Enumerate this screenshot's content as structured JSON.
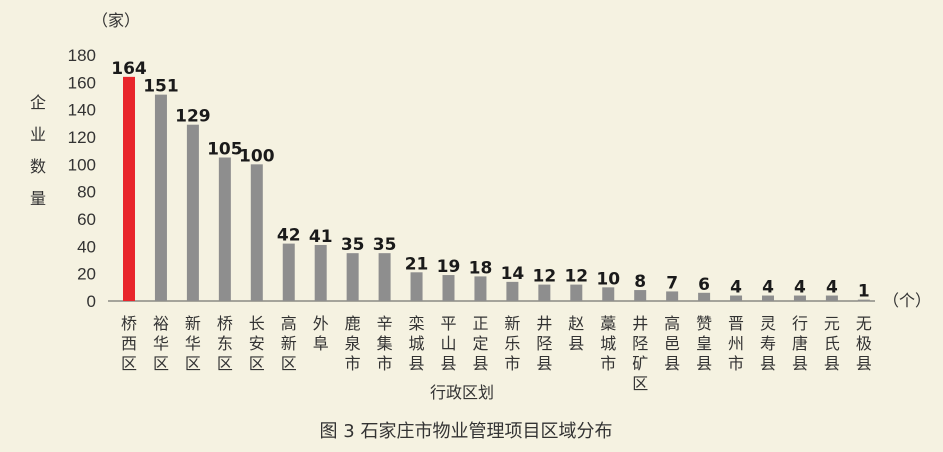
{
  "chart_data": {
    "type": "bar",
    "caption": "图 3 石家庄市物业管理项目区域分布",
    "ylabel": "企业数量",
    "yunit": "（家）",
    "xlabel": "行政区划",
    "xunit": "（个）",
    "ylim": [
      0,
      180
    ],
    "yticks": [
      0,
      20,
      40,
      60,
      80,
      100,
      120,
      140,
      160,
      180
    ],
    "categories": [
      "桥西区",
      "裕华区",
      "新华区",
      "桥东区",
      "长安区",
      "高新区",
      "外阜",
      "鹿泉市",
      "辛集市",
      "栾城县",
      "平山县",
      "正定县",
      "新乐市",
      "井陉县",
      "赵县",
      "藁城市",
      "井陉矿区",
      "高邑县",
      "赞皇县",
      "晋州市",
      "灵寿县",
      "行唐县",
      "元氏县",
      "无极县"
    ],
    "values": [
      164,
      151,
      129,
      105,
      100,
      42,
      41,
      35,
      35,
      21,
      19,
      18,
      14,
      12,
      12,
      10,
      8,
      7,
      6,
      4,
      4,
      4,
      4,
      1
    ],
    "colors": {
      "highlight": "#e8252b",
      "bar": "#8e8e8e",
      "axis": "#555555"
    },
    "highlight_index": 0,
    "grid": false,
    "legend": "none"
  }
}
